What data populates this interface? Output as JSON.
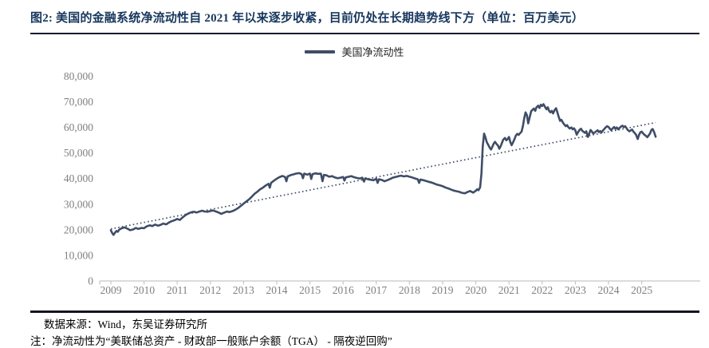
{
  "header": {
    "title": "图2:  美国的金融系统净流动性自 2021 年以来逐步收紧，目前仍处在长期趋势线下方（单位：百万美元）"
  },
  "footer": {
    "source": "数据来源：Wind，东吴证券研究所",
    "note": "注：净流动性为“美联储总资产 - 财政部一般账户余额（TGA） - 隔夜逆回购”"
  },
  "colors": {
    "title_navy": "#17375D",
    "series_line": "#3F4D66",
    "axis_gray": "#C6C6C6",
    "label_gray": "#7F7F7F"
  },
  "chart_data": {
    "type": "line",
    "title": "",
    "legend": {
      "position": "top-center",
      "entries": [
        "美国净流动性"
      ]
    },
    "x_axis": {
      "label": "",
      "ticks": [
        2009,
        2010,
        2011,
        2012,
        2013,
        2014,
        2015,
        2016,
        2017,
        2018,
        2019,
        2020,
        2021,
        2022,
        2023,
        2024,
        2025
      ],
      "range": [
        2008.67,
        2026.6
      ],
      "grid": false
    },
    "y_axis": {
      "label": "",
      "tick_values": [
        0,
        10000,
        20000,
        30000,
        40000,
        50000,
        60000,
        70000,
        80000
      ],
      "tick_labels": [
        "0",
        "10,000",
        "20,000",
        "30,000",
        "40,000",
        "50,000",
        "60,000",
        "70,000",
        "80,000"
      ],
      "range": [
        0,
        80000
      ],
      "grid": false
    },
    "trend_line": {
      "name": "长期趋势线",
      "style": "dotted",
      "color": "#3F4D66",
      "points": [
        [
          2009.0,
          20300
        ],
        [
          2025.42,
          61800
        ]
      ]
    },
    "series": [
      {
        "name": "美国净流动性",
        "color": "#3F4D66",
        "points": [
          [
            2009.0,
            19800
          ],
          [
            2009.04,
            18700
          ],
          [
            2009.08,
            18000
          ],
          [
            2009.13,
            18900
          ],
          [
            2009.17,
            19500
          ],
          [
            2009.21,
            19200
          ],
          [
            2009.25,
            20000
          ],
          [
            2009.33,
            20600
          ],
          [
            2009.42,
            20900
          ],
          [
            2009.5,
            20400
          ],
          [
            2009.58,
            19800
          ],
          [
            2009.67,
            20100
          ],
          [
            2009.75,
            20700
          ],
          [
            2009.83,
            20300
          ],
          [
            2009.92,
            20700
          ],
          [
            2010.0,
            20600
          ],
          [
            2010.08,
            21300
          ],
          [
            2010.17,
            21700
          ],
          [
            2010.25,
            21400
          ],
          [
            2010.33,
            22000
          ],
          [
            2010.42,
            21600
          ],
          [
            2010.5,
            21900
          ],
          [
            2010.58,
            22400
          ],
          [
            2010.67,
            22100
          ],
          [
            2010.75,
            22800
          ],
          [
            2010.83,
            23300
          ],
          [
            2010.92,
            23700
          ],
          [
            2011.0,
            24200
          ],
          [
            2011.08,
            23800
          ],
          [
            2011.17,
            24900
          ],
          [
            2011.25,
            25700
          ],
          [
            2011.33,
            26300
          ],
          [
            2011.42,
            26800
          ],
          [
            2011.5,
            27000
          ],
          [
            2011.58,
            26700
          ],
          [
            2011.67,
            27100
          ],
          [
            2011.75,
            27400
          ],
          [
            2011.83,
            27100
          ],
          [
            2011.92,
            27000
          ],
          [
            2012.0,
            27300
          ],
          [
            2012.08,
            27500
          ],
          [
            2012.17,
            27100
          ],
          [
            2012.25,
            26700
          ],
          [
            2012.33,
            26200
          ],
          [
            2012.42,
            26700
          ],
          [
            2012.5,
            27100
          ],
          [
            2012.58,
            26900
          ],
          [
            2012.67,
            27300
          ],
          [
            2012.75,
            27800
          ],
          [
            2012.83,
            28400
          ],
          [
            2012.92,
            29300
          ],
          [
            2013.0,
            30200
          ],
          [
            2013.08,
            31000
          ],
          [
            2013.17,
            31900
          ],
          [
            2013.25,
            32900
          ],
          [
            2013.33,
            34000
          ],
          [
            2013.42,
            34900
          ],
          [
            2013.5,
            35800
          ],
          [
            2013.58,
            36400
          ],
          [
            2013.67,
            37300
          ],
          [
            2013.75,
            37900
          ],
          [
            2013.79,
            36400
          ],
          [
            2013.83,
            38300
          ],
          [
            2013.92,
            39200
          ],
          [
            2014.0,
            39900
          ],
          [
            2014.08,
            40500
          ],
          [
            2014.17,
            41000
          ],
          [
            2014.25,
            40600
          ],
          [
            2014.29,
            38900
          ],
          [
            2014.33,
            40800
          ],
          [
            2014.42,
            41300
          ],
          [
            2014.5,
            41600
          ],
          [
            2014.58,
            41900
          ],
          [
            2014.67,
            42100
          ],
          [
            2014.75,
            41700
          ],
          [
            2014.79,
            40100
          ],
          [
            2014.83,
            41900
          ],
          [
            2014.92,
            41500
          ],
          [
            2015.0,
            41900
          ],
          [
            2015.04,
            39800
          ],
          [
            2015.08,
            41700
          ],
          [
            2015.17,
            42000
          ],
          [
            2015.25,
            41800
          ],
          [
            2015.33,
            41900
          ],
          [
            2015.38,
            38900
          ],
          [
            2015.42,
            41400
          ],
          [
            2015.5,
            41200
          ],
          [
            2015.58,
            40700
          ],
          [
            2015.67,
            40900
          ],
          [
            2015.75,
            40400
          ],
          [
            2015.83,
            40100
          ],
          [
            2015.92,
            40300
          ],
          [
            2016.0,
            40600
          ],
          [
            2016.04,
            39200
          ],
          [
            2016.08,
            40400
          ],
          [
            2016.17,
            40700
          ],
          [
            2016.25,
            40900
          ],
          [
            2016.33,
            40500
          ],
          [
            2016.42,
            40200
          ],
          [
            2016.5,
            40000
          ],
          [
            2016.58,
            40300
          ],
          [
            2016.63,
            38800
          ],
          [
            2016.67,
            40100
          ],
          [
            2016.75,
            39700
          ],
          [
            2016.83,
            39500
          ],
          [
            2016.92,
            39300
          ],
          [
            2017.0,
            39900
          ],
          [
            2017.04,
            38300
          ],
          [
            2017.08,
            39700
          ],
          [
            2017.17,
            39400
          ],
          [
            2017.25,
            38900
          ],
          [
            2017.33,
            39300
          ],
          [
            2017.42,
            39800
          ],
          [
            2017.5,
            40300
          ],
          [
            2017.58,
            40600
          ],
          [
            2017.67,
            40900
          ],
          [
            2017.75,
            41100
          ],
          [
            2017.83,
            40800
          ],
          [
            2017.92,
            41000
          ],
          [
            2018.0,
            40700
          ],
          [
            2018.08,
            40400
          ],
          [
            2018.17,
            40000
          ],
          [
            2018.25,
            39700
          ],
          [
            2018.29,
            38300
          ],
          [
            2018.33,
            39600
          ],
          [
            2018.42,
            39300
          ],
          [
            2018.5,
            39000
          ],
          [
            2018.58,
            38700
          ],
          [
            2018.67,
            38400
          ],
          [
            2018.75,
            38000
          ],
          [
            2018.83,
            37600
          ],
          [
            2018.92,
            37300
          ],
          [
            2019.0,
            37000
          ],
          [
            2019.08,
            36500
          ],
          [
            2019.17,
            36100
          ],
          [
            2019.25,
            35700
          ],
          [
            2019.33,
            35300
          ],
          [
            2019.42,
            35000
          ],
          [
            2019.5,
            34800
          ],
          [
            2019.58,
            34400
          ],
          [
            2019.67,
            34200
          ],
          [
            2019.75,
            34700
          ],
          [
            2019.83,
            35100
          ],
          [
            2019.92,
            34500
          ],
          [
            2020.0,
            35200
          ],
          [
            2020.04,
            35800
          ],
          [
            2020.08,
            35400
          ],
          [
            2020.13,
            36500
          ],
          [
            2020.17,
            42000
          ],
          [
            2020.21,
            52500
          ],
          [
            2020.25,
            57500
          ],
          [
            2020.29,
            56000
          ],
          [
            2020.33,
            54200
          ],
          [
            2020.38,
            53000
          ],
          [
            2020.42,
            52000
          ],
          [
            2020.46,
            51300
          ],
          [
            2020.5,
            52400
          ],
          [
            2020.54,
            53600
          ],
          [
            2020.58,
            54300
          ],
          [
            2020.63,
            53400
          ],
          [
            2020.67,
            52800
          ],
          [
            2020.71,
            51600
          ],
          [
            2020.75,
            52600
          ],
          [
            2020.79,
            54000
          ],
          [
            2020.83,
            55200
          ],
          [
            2020.88,
            55800
          ],
          [
            2020.92,
            54900
          ],
          [
            2020.96,
            55400
          ],
          [
            2021.0,
            56200
          ],
          [
            2021.04,
            54200
          ],
          [
            2021.08,
            53000
          ],
          [
            2021.13,
            54300
          ],
          [
            2021.17,
            55500
          ],
          [
            2021.21,
            56800
          ],
          [
            2021.25,
            57400
          ],
          [
            2021.29,
            57000
          ],
          [
            2021.33,
            57600
          ],
          [
            2021.38,
            58300
          ],
          [
            2021.42,
            60500
          ],
          [
            2021.46,
            63500
          ],
          [
            2021.5,
            65800
          ],
          [
            2021.54,
            64700
          ],
          [
            2021.58,
            61500
          ],
          [
            2021.63,
            64200
          ],
          [
            2021.67,
            66300
          ],
          [
            2021.71,
            66800
          ],
          [
            2021.75,
            67300
          ],
          [
            2021.79,
            66400
          ],
          [
            2021.83,
            67800
          ],
          [
            2021.88,
            68400
          ],
          [
            2021.92,
            67500
          ],
          [
            2021.96,
            68800
          ],
          [
            2022.0,
            68300
          ],
          [
            2022.04,
            69000
          ],
          [
            2022.08,
            68100
          ],
          [
            2022.13,
            67000
          ],
          [
            2022.17,
            67800
          ],
          [
            2022.21,
            66400
          ],
          [
            2022.25,
            65800
          ],
          [
            2022.29,
            66400
          ],
          [
            2022.33,
            65400
          ],
          [
            2022.38,
            66800
          ],
          [
            2022.42,
            67400
          ],
          [
            2022.46,
            65800
          ],
          [
            2022.5,
            64000
          ],
          [
            2022.54,
            62500
          ],
          [
            2022.58,
            62900
          ],
          [
            2022.63,
            61700
          ],
          [
            2022.67,
            61000
          ],
          [
            2022.71,
            60400
          ],
          [
            2022.75,
            60800
          ],
          [
            2022.79,
            60000
          ],
          [
            2022.83,
            59500
          ],
          [
            2022.88,
            59900
          ],
          [
            2022.92,
            59200
          ],
          [
            2022.96,
            59600
          ],
          [
            2023.0,
            58800
          ],
          [
            2023.04,
            57100
          ],
          [
            2023.08,
            58000
          ],
          [
            2023.13,
            59000
          ],
          [
            2023.17,
            59400
          ],
          [
            2023.21,
            58600
          ],
          [
            2023.25,
            58200
          ],
          [
            2023.29,
            57800
          ],
          [
            2023.33,
            58400
          ],
          [
            2023.38,
            56200
          ],
          [
            2023.42,
            57600
          ],
          [
            2023.46,
            58900
          ],
          [
            2023.5,
            58300
          ],
          [
            2023.54,
            57500
          ],
          [
            2023.58,
            57900
          ],
          [
            2023.63,
            58400
          ],
          [
            2023.67,
            58800
          ],
          [
            2023.71,
            58100
          ],
          [
            2023.75,
            58500
          ],
          [
            2023.79,
            58000
          ],
          [
            2023.83,
            58700
          ],
          [
            2023.88,
            59400
          ],
          [
            2023.92,
            60000
          ],
          [
            2023.96,
            60400
          ],
          [
            2024.0,
            60100
          ],
          [
            2024.04,
            59400
          ],
          [
            2024.08,
            58900
          ],
          [
            2024.13,
            59600
          ],
          [
            2024.17,
            60100
          ],
          [
            2024.21,
            59400
          ],
          [
            2024.25,
            59900
          ],
          [
            2024.29,
            59200
          ],
          [
            2024.33,
            59700
          ],
          [
            2024.38,
            60300
          ],
          [
            2024.42,
            60600
          ],
          [
            2024.46,
            60000
          ],
          [
            2024.5,
            60400
          ],
          [
            2024.54,
            59700
          ],
          [
            2024.58,
            58900
          ],
          [
            2024.63,
            58400
          ],
          [
            2024.67,
            58800
          ],
          [
            2024.71,
            59100
          ],
          [
            2024.75,
            58300
          ],
          [
            2024.79,
            57700
          ],
          [
            2024.83,
            57100
          ],
          [
            2024.88,
            55400
          ],
          [
            2024.92,
            57000
          ],
          [
            2024.96,
            58000
          ],
          [
            2025.0,
            58300
          ],
          [
            2025.04,
            57600
          ],
          [
            2025.08,
            57100
          ],
          [
            2025.13,
            56600
          ],
          [
            2025.17,
            56100
          ],
          [
            2025.21,
            56800
          ],
          [
            2025.25,
            57500
          ],
          [
            2025.29,
            58900
          ],
          [
            2025.33,
            59300
          ],
          [
            2025.38,
            57900
          ],
          [
            2025.42,
            56300
          ]
        ]
      }
    ]
  }
}
